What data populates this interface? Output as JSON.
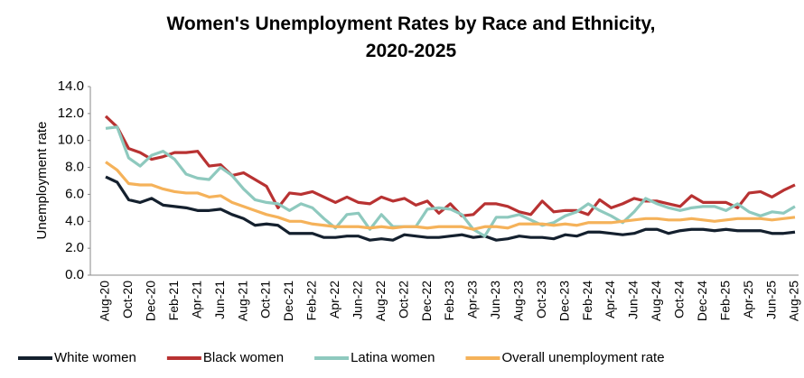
{
  "chart_data": {
    "type": "line",
    "title": [
      "Women's Unemployment Rates by Race and Ethnicity,",
      "2020-2025"
    ],
    "y_label": "Unemployment rate",
    "categories": [
      "Aug-20",
      null,
      "Oct-20",
      null,
      "Dec-20",
      null,
      "Feb-21",
      null,
      "Apr-21",
      null,
      "Jun-21",
      null,
      "Aug-21",
      null,
      "Oct-21",
      null,
      "Dec-21",
      null,
      "Feb-22",
      null,
      "Apr-22",
      null,
      "Jun-22",
      null,
      "Aug-22",
      null,
      "Oct-22",
      null,
      "Dec-22",
      null,
      "Feb-23",
      null,
      "Apr-23",
      null,
      "Jun-23",
      null,
      "Aug-23",
      null,
      "Oct-23",
      null,
      "Dec-23",
      null,
      "Feb-24",
      null,
      "Apr-24",
      null,
      "Jun-24",
      null,
      "Aug-24",
      null,
      "Oct-24",
      null,
      "Dec-24",
      null,
      "Feb-25",
      null,
      "Apr-25",
      null,
      "Jun-25",
      null,
      "Aug-25"
    ],
    "series": [
      {
        "name": "White women",
        "color": "#14202e",
        "values": [
          7.3,
          6.9,
          5.6,
          5.4,
          5.7,
          5.2,
          5.1,
          5.0,
          4.8,
          4.8,
          4.9,
          4.5,
          4.2,
          3.7,
          3.8,
          3.7,
          3.1,
          3.1,
          3.1,
          2.8,
          2.8,
          2.9,
          2.9,
          2.6,
          2.7,
          2.6,
          3.0,
          2.9,
          2.8,
          2.8,
          2.9,
          3.0,
          2.8,
          2.9,
          2.6,
          2.7,
          2.9,
          2.8,
          2.8,
          2.7,
          3.0,
          2.9,
          3.2,
          3.2,
          3.1,
          3.0,
          3.1,
          3.4,
          3.4,
          3.1,
          3.3,
          3.4,
          3.4,
          3.3,
          3.4,
          3.3,
          3.3,
          3.3,
          3.1,
          3.1,
          3.2
        ]
      },
      {
        "name": "Black women",
        "color": "#b83232",
        "values": [
          11.8,
          11.0,
          9.4,
          9.1,
          8.6,
          8.8,
          9.1,
          9.1,
          9.2,
          8.1,
          8.2,
          7.4,
          7.6,
          7.1,
          6.6,
          5.0,
          6.1,
          6.0,
          6.2,
          5.8,
          5.4,
          5.8,
          5.4,
          5.3,
          5.8,
          5.5,
          5.7,
          5.2,
          5.5,
          4.6,
          5.3,
          4.4,
          4.5,
          5.3,
          5.3,
          5.1,
          4.7,
          4.5,
          5.5,
          4.7,
          4.8,
          4.8,
          4.5,
          5.6,
          5.0,
          5.3,
          5.7,
          5.5,
          5.5,
          5.3,
          5.1,
          5.9,
          5.4,
          5.4,
          5.4,
          5.0,
          6.1,
          6.2,
          5.8,
          6.3,
          6.7
        ]
      },
      {
        "name": "Latina women",
        "color": "#8ec9be",
        "values": [
          10.9,
          11.0,
          8.7,
          8.1,
          8.9,
          9.2,
          8.6,
          7.5,
          7.2,
          7.1,
          8.0,
          7.4,
          6.4,
          5.6,
          5.4,
          5.3,
          4.8,
          5.3,
          5.0,
          4.2,
          3.5,
          4.5,
          4.6,
          3.4,
          4.5,
          3.6,
          3.6,
          3.6,
          4.9,
          5.0,
          4.9,
          4.5,
          3.4,
          2.9,
          4.3,
          4.3,
          4.5,
          4.1,
          3.7,
          3.9,
          4.4,
          4.7,
          5.3,
          4.8,
          4.4,
          3.9,
          4.7,
          5.7,
          5.3,
          5.0,
          4.8,
          5.0,
          5.1,
          5.1,
          4.8,
          5.3,
          4.7,
          4.4,
          4.7,
          4.6,
          5.1
        ]
      },
      {
        "name": "Overall unemployment rate",
        "color": "#f5b25a",
        "values": [
          8.4,
          7.8,
          6.8,
          6.7,
          6.7,
          6.4,
          6.2,
          6.1,
          6.1,
          5.8,
          5.9,
          5.4,
          5.1,
          4.8,
          4.5,
          4.3,
          4.0,
          4.0,
          3.8,
          3.7,
          3.6,
          3.6,
          3.6,
          3.5,
          3.6,
          3.5,
          3.6,
          3.6,
          3.5,
          3.6,
          3.6,
          3.6,
          3.4,
          3.6,
          3.6,
          3.5,
          3.8,
          3.8,
          3.8,
          3.7,
          3.8,
          3.7,
          3.9,
          3.9,
          3.9,
          4.0,
          4.1,
          4.2,
          4.2,
          4.1,
          4.1,
          4.2,
          4.1,
          4.0,
          4.1,
          4.2,
          4.2,
          4.2,
          4.1,
          4.2,
          4.3
        ]
      }
    ],
    "ylim": [
      0,
      14
    ],
    "yticks": [
      {
        "value": 0,
        "label": "0.0"
      },
      {
        "value": 2,
        "label": "2.0"
      },
      {
        "value": 4,
        "label": "4.0"
      },
      {
        "value": 6,
        "label": "6.0"
      },
      {
        "value": 8,
        "label": "8.0"
      },
      {
        "value": 10,
        "label": "10.0"
      },
      {
        "value": 12,
        "label": "12.0"
      },
      {
        "value": 14,
        "label": "14.0"
      }
    ],
    "grid": false,
    "legend": "bottom"
  }
}
